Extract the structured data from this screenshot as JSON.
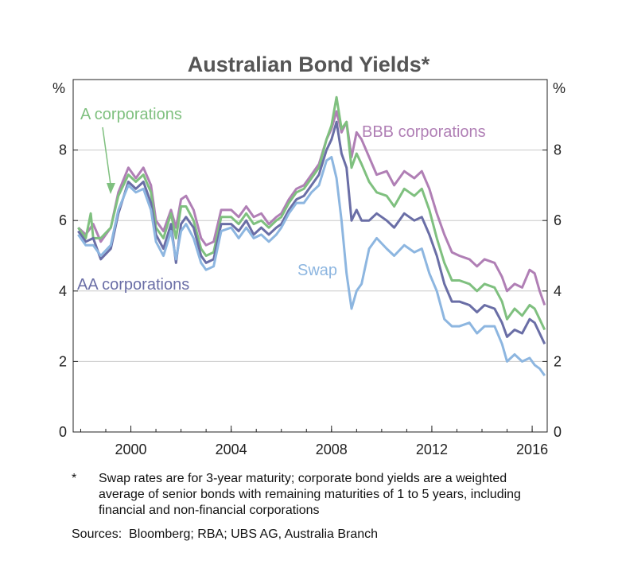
{
  "chart_data": {
    "type": "line",
    "title": "Australian Bond Yields*",
    "ylabel_left": "%",
    "ylabel_right": "%",
    "xlim": [
      1997.7,
      2016.6
    ],
    "ylim": [
      0,
      10
    ],
    "yticks": [
      0,
      2,
      4,
      6,
      8
    ],
    "xticks": [
      2000,
      2004,
      2008,
      2012,
      2016
    ],
    "grid": true,
    "series": [
      {
        "name": "BBB corporations",
        "color": "#b07fb5",
        "points": [
          [
            1997.9,
            5.8
          ],
          [
            1998.2,
            5.6
          ],
          [
            1998.5,
            5.9
          ],
          [
            1998.8,
            5.4
          ],
          [
            1999.2,
            5.8
          ],
          [
            1999.5,
            6.8
          ],
          [
            1999.9,
            7.5
          ],
          [
            2000.2,
            7.2
          ],
          [
            2000.5,
            7.5
          ],
          [
            2000.8,
            7.0
          ],
          [
            2001.0,
            6.0
          ],
          [
            2001.3,
            5.7
          ],
          [
            2001.6,
            6.3
          ],
          [
            2001.8,
            5.8
          ],
          [
            2002.0,
            6.6
          ],
          [
            2002.2,
            6.7
          ],
          [
            2002.5,
            6.3
          ],
          [
            2002.8,
            5.5
          ],
          [
            2003.0,
            5.3
          ],
          [
            2003.3,
            5.4
          ],
          [
            2003.6,
            6.3
          ],
          [
            2004.0,
            6.3
          ],
          [
            2004.3,
            6.1
          ],
          [
            2004.6,
            6.4
          ],
          [
            2004.9,
            6.1
          ],
          [
            2005.2,
            6.2
          ],
          [
            2005.5,
            5.9
          ],
          [
            2005.8,
            6.1
          ],
          [
            2006.0,
            6.2
          ],
          [
            2006.3,
            6.6
          ],
          [
            2006.6,
            6.9
          ],
          [
            2006.9,
            7.0
          ],
          [
            2007.2,
            7.3
          ],
          [
            2007.5,
            7.6
          ],
          [
            2007.8,
            8.3
          ],
          [
            2008.0,
            8.6
          ],
          [
            2008.2,
            9.1
          ],
          [
            2008.4,
            8.5
          ],
          [
            2008.6,
            8.8
          ],
          [
            2008.8,
            7.8
          ],
          [
            2009.0,
            8.5
          ],
          [
            2009.2,
            8.3
          ],
          [
            2009.5,
            7.8
          ],
          [
            2009.8,
            7.3
          ],
          [
            2010.2,
            7.4
          ],
          [
            2010.5,
            7.0
          ],
          [
            2010.9,
            7.4
          ],
          [
            2011.3,
            7.2
          ],
          [
            2011.6,
            7.4
          ],
          [
            2011.9,
            6.9
          ],
          [
            2012.2,
            6.2
          ],
          [
            2012.5,
            5.6
          ],
          [
            2012.8,
            5.1
          ],
          [
            2013.1,
            5.0
          ],
          [
            2013.5,
            4.9
          ],
          [
            2013.8,
            4.7
          ],
          [
            2014.1,
            4.9
          ],
          [
            2014.5,
            4.8
          ],
          [
            2014.8,
            4.4
          ],
          [
            2015.0,
            4.0
          ],
          [
            2015.3,
            4.2
          ],
          [
            2015.6,
            4.1
          ],
          [
            2015.9,
            4.6
          ],
          [
            2016.1,
            4.5
          ],
          [
            2016.3,
            4.0
          ],
          [
            2016.5,
            3.6
          ]
        ]
      },
      {
        "name": "A corporations",
        "color": "#7fc07f",
        "points": [
          [
            1997.9,
            5.8
          ],
          [
            1998.2,
            5.5
          ],
          [
            1998.4,
            6.2
          ],
          [
            1998.5,
            5.5
          ],
          [
            1998.8,
            5.5
          ],
          [
            1999.2,
            5.8
          ],
          [
            1999.5,
            6.7
          ],
          [
            1999.9,
            7.3
          ],
          [
            2000.2,
            7.1
          ],
          [
            2000.5,
            7.3
          ],
          [
            2000.8,
            6.8
          ],
          [
            2001.0,
            5.8
          ],
          [
            2001.3,
            5.5
          ],
          [
            2001.6,
            6.2
          ],
          [
            2001.8,
            5.5
          ],
          [
            2002.0,
            6.4
          ],
          [
            2002.2,
            6.4
          ],
          [
            2002.5,
            6.0
          ],
          [
            2002.8,
            5.2
          ],
          [
            2003.0,
            5.0
          ],
          [
            2003.3,
            5.1
          ],
          [
            2003.6,
            6.1
          ],
          [
            2004.0,
            6.1
          ],
          [
            2004.3,
            5.9
          ],
          [
            2004.6,
            6.2
          ],
          [
            2004.9,
            5.9
          ],
          [
            2005.2,
            6.0
          ],
          [
            2005.5,
            5.8
          ],
          [
            2005.8,
            6.0
          ],
          [
            2006.0,
            6.1
          ],
          [
            2006.3,
            6.5
          ],
          [
            2006.6,
            6.8
          ],
          [
            2006.9,
            6.9
          ],
          [
            2007.2,
            7.2
          ],
          [
            2007.5,
            7.5
          ],
          [
            2007.8,
            8.3
          ],
          [
            2008.0,
            8.7
          ],
          [
            2008.2,
            9.5
          ],
          [
            2008.4,
            8.6
          ],
          [
            2008.6,
            8.8
          ],
          [
            2008.8,
            7.5
          ],
          [
            2009.0,
            7.9
          ],
          [
            2009.2,
            7.6
          ],
          [
            2009.5,
            7.1
          ],
          [
            2009.8,
            6.8
          ],
          [
            2010.2,
            6.7
          ],
          [
            2010.5,
            6.4
          ],
          [
            2010.9,
            6.9
          ],
          [
            2011.3,
            6.7
          ],
          [
            2011.6,
            6.9
          ],
          [
            2011.9,
            6.3
          ],
          [
            2012.2,
            5.5
          ],
          [
            2012.5,
            4.8
          ],
          [
            2012.8,
            4.3
          ],
          [
            2013.1,
            4.3
          ],
          [
            2013.5,
            4.2
          ],
          [
            2013.8,
            4.0
          ],
          [
            2014.1,
            4.2
          ],
          [
            2014.5,
            4.1
          ],
          [
            2014.8,
            3.7
          ],
          [
            2015.0,
            3.2
          ],
          [
            2015.3,
            3.5
          ],
          [
            2015.6,
            3.3
          ],
          [
            2015.9,
            3.6
          ],
          [
            2016.1,
            3.5
          ],
          [
            2016.3,
            3.2
          ],
          [
            2016.5,
            2.9
          ]
        ]
      },
      {
        "name": "AA corporations",
        "color": "#6a6ea6",
        "points": [
          [
            1997.9,
            5.7
          ],
          [
            1998.2,
            5.4
          ],
          [
            1998.5,
            5.5
          ],
          [
            1998.8,
            4.9
          ],
          [
            1999.2,
            5.2
          ],
          [
            1999.5,
            6.2
          ],
          [
            1999.9,
            7.1
          ],
          [
            2000.2,
            6.9
          ],
          [
            2000.5,
            7.1
          ],
          [
            2000.8,
            6.5
          ],
          [
            2001.0,
            5.6
          ],
          [
            2001.3,
            5.2
          ],
          [
            2001.6,
            5.9
          ],
          [
            2001.8,
            4.8
          ],
          [
            2002.0,
            5.9
          ],
          [
            2002.2,
            6.1
          ],
          [
            2002.5,
            5.8
          ],
          [
            2002.8,
            5.0
          ],
          [
            2003.0,
            4.8
          ],
          [
            2003.3,
            4.9
          ],
          [
            2003.6,
            5.9
          ],
          [
            2004.0,
            5.9
          ],
          [
            2004.3,
            5.7
          ],
          [
            2004.6,
            6.0
          ],
          [
            2004.9,
            5.6
          ],
          [
            2005.2,
            5.8
          ],
          [
            2005.5,
            5.6
          ],
          [
            2005.8,
            5.8
          ],
          [
            2006.0,
            5.9
          ],
          [
            2006.3,
            6.3
          ],
          [
            2006.6,
            6.6
          ],
          [
            2006.9,
            6.7
          ],
          [
            2007.2,
            7.0
          ],
          [
            2007.5,
            7.3
          ],
          [
            2007.8,
            8.0
          ],
          [
            2008.0,
            8.3
          ],
          [
            2008.2,
            8.8
          ],
          [
            2008.4,
            7.9
          ],
          [
            2008.6,
            7.5
          ],
          [
            2008.8,
            6.0
          ],
          [
            2009.0,
            6.3
          ],
          [
            2009.2,
            6.0
          ],
          [
            2009.5,
            6.0
          ],
          [
            2009.8,
            6.2
          ],
          [
            2010.2,
            6.0
          ],
          [
            2010.5,
            5.8
          ],
          [
            2010.9,
            6.2
          ],
          [
            2011.3,
            6.0
          ],
          [
            2011.6,
            6.1
          ],
          [
            2011.9,
            5.6
          ],
          [
            2012.2,
            5.0
          ],
          [
            2012.5,
            4.2
          ],
          [
            2012.8,
            3.7
          ],
          [
            2013.1,
            3.7
          ],
          [
            2013.5,
            3.6
          ],
          [
            2013.8,
            3.4
          ],
          [
            2014.1,
            3.6
          ],
          [
            2014.5,
            3.5
          ],
          [
            2014.8,
            3.1
          ],
          [
            2015.0,
            2.7
          ],
          [
            2015.3,
            2.9
          ],
          [
            2015.6,
            2.8
          ],
          [
            2015.9,
            3.2
          ],
          [
            2016.1,
            3.1
          ],
          [
            2016.3,
            2.8
          ],
          [
            2016.5,
            2.5
          ]
        ]
      },
      {
        "name": "Swap",
        "color": "#8db6e0",
        "points": [
          [
            1997.9,
            5.6
          ],
          [
            1998.2,
            5.3
          ],
          [
            1998.5,
            5.3
          ],
          [
            1998.8,
            5.0
          ],
          [
            1999.2,
            5.3
          ],
          [
            1999.5,
            6.3
          ],
          [
            1999.9,
            7.0
          ],
          [
            2000.2,
            6.8
          ],
          [
            2000.5,
            6.9
          ],
          [
            2000.8,
            6.3
          ],
          [
            2001.0,
            5.4
          ],
          [
            2001.3,
            5.0
          ],
          [
            2001.6,
            5.7
          ],
          [
            2001.8,
            4.9
          ],
          [
            2002.0,
            5.7
          ],
          [
            2002.2,
            5.9
          ],
          [
            2002.5,
            5.5
          ],
          [
            2002.8,
            4.8
          ],
          [
            2003.0,
            4.6
          ],
          [
            2003.3,
            4.7
          ],
          [
            2003.6,
            5.7
          ],
          [
            2004.0,
            5.8
          ],
          [
            2004.3,
            5.5
          ],
          [
            2004.6,
            5.8
          ],
          [
            2004.9,
            5.5
          ],
          [
            2005.2,
            5.6
          ],
          [
            2005.5,
            5.4
          ],
          [
            2005.8,
            5.6
          ],
          [
            2006.0,
            5.8
          ],
          [
            2006.3,
            6.2
          ],
          [
            2006.6,
            6.5
          ],
          [
            2006.9,
            6.5
          ],
          [
            2007.2,
            6.8
          ],
          [
            2007.5,
            7.0
          ],
          [
            2007.8,
            7.7
          ],
          [
            2008.0,
            7.8
          ],
          [
            2008.2,
            7.2
          ],
          [
            2008.4,
            6.0
          ],
          [
            2008.6,
            4.5
          ],
          [
            2008.8,
            3.5
          ],
          [
            2009.0,
            4.0
          ],
          [
            2009.2,
            4.2
          ],
          [
            2009.5,
            5.2
          ],
          [
            2009.8,
            5.5
          ],
          [
            2010.2,
            5.2
          ],
          [
            2010.5,
            5.0
          ],
          [
            2010.9,
            5.3
          ],
          [
            2011.3,
            5.1
          ],
          [
            2011.6,
            5.2
          ],
          [
            2011.9,
            4.5
          ],
          [
            2012.2,
            4.0
          ],
          [
            2012.5,
            3.2
          ],
          [
            2012.8,
            3.0
          ],
          [
            2013.1,
            3.0
          ],
          [
            2013.5,
            3.1
          ],
          [
            2013.8,
            2.8
          ],
          [
            2014.1,
            3.0
          ],
          [
            2014.5,
            3.0
          ],
          [
            2014.8,
            2.5
          ],
          [
            2015.0,
            2.0
          ],
          [
            2015.3,
            2.2
          ],
          [
            2015.6,
            2.0
          ],
          [
            2015.9,
            2.1
          ],
          [
            2016.1,
            1.9
          ],
          [
            2016.3,
            1.8
          ],
          [
            2016.5,
            1.6
          ]
        ]
      }
    ],
    "labels": [
      {
        "text": "A corporations",
        "series": "A corporations"
      },
      {
        "text": "BBB corporations",
        "series": "BBB corporations"
      },
      {
        "text": "AA corporations",
        "series": "AA corporations"
      },
      {
        "text": "Swap",
        "series": "Swap"
      }
    ]
  },
  "footnote": {
    "mark": "*",
    "text": "Swap rates are for 3-year maturity; corporate bond yields are a weighted average of senior bonds with remaining maturities of 1 to 5 years, including financial and non-financial corporations"
  },
  "sources": "Sources:  Bloomberg; RBA; UBS AG, Australia Branch"
}
